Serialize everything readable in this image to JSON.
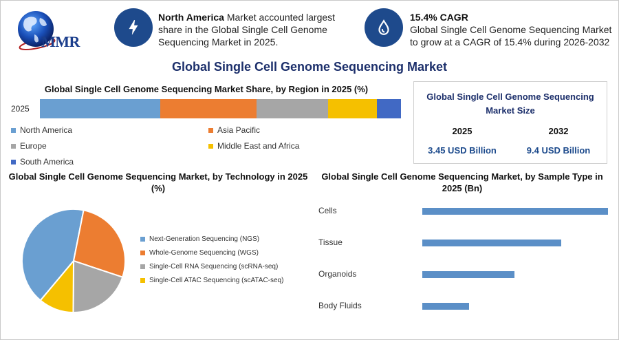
{
  "header": {
    "logo_text": "MMR",
    "fact1": {
      "bold": "North America",
      "text": " Market accounted largest share in the Global Single Cell Genome Sequencing Market in 2025."
    },
    "fact2": {
      "bold": "15.4% CAGR",
      "text": "Global Single Cell Genome Sequencing Market to grow at a CAGR of 15.4% during 2026-2032"
    }
  },
  "main_title": "Global Single Cell Genome Sequencing Market",
  "market_size": {
    "title": "Global Single Cell Genome Sequencing Market Size",
    "year_a": "2025",
    "value_a": "3.45 USD Billion",
    "year_b": "2032",
    "value_b": "9.4 USD Billion"
  },
  "colors": {
    "north_america": "#6a9fd1",
    "asia_pacific": "#ec7d31",
    "europe": "#a6a6a6",
    "middle_east": "#f5c000",
    "south_america": "#4169c4",
    "bar": "#5b8fc7",
    "navy": "#1e4a8c"
  },
  "chart_data": [
    {
      "type": "bar",
      "orientation": "horizontal-stacked",
      "title": "Global Single Cell Genome Sequencing Market Share, by Region in 2025 (%)",
      "categories": [
        "2025"
      ],
      "series": [
        {
          "name": "North America",
          "values": [
            33.3
          ]
        },
        {
          "name": "Asia Pacific",
          "values": [
            26.7
          ]
        },
        {
          "name": "Europe",
          "values": [
            19.8
          ]
        },
        {
          "name": "Middle East and Africa",
          "values": [
            13.5
          ]
        },
        {
          "name": "South America",
          "values": [
            6.7
          ]
        }
      ],
      "legend": "bottom"
    },
    {
      "type": "pie",
      "title": "Global Single Cell Genome Sequencing Market, by Technology in 2025 (%)",
      "categories": [
        "Next-Generation Sequencing (NGS)",
        "Whole-Genome Sequencing (WGS)",
        "Single-Cell RNA Sequencing (scRNA-seq)",
        "Single-Cell ATAC Sequencing (scATAC-seq)"
      ],
      "values": [
        42,
        27,
        20,
        11
      ],
      "legend": "right"
    },
    {
      "type": "bar",
      "orientation": "horizontal",
      "title": "Global Single Cell Genome Sequencing Market, by Sample Type in 2025 (Bn)",
      "categories": [
        "Cells",
        "Tissue",
        "Organoids",
        "Body Fluids"
      ],
      "values": [
        1.35,
        1.01,
        0.67,
        0.34
      ],
      "xlim": [
        0,
        1.35
      ],
      "axes_visible": false,
      "grid": false
    }
  ]
}
